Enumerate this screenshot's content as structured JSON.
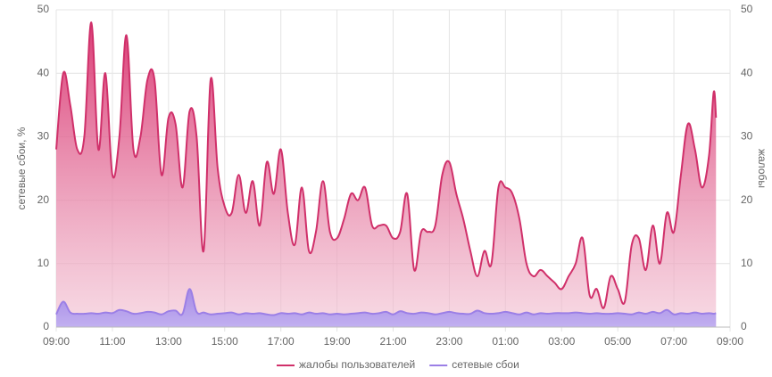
{
  "chart_data": {
    "type": "area",
    "y_label": "сетевые сбои, %",
    "y2_label": "жалобы",
    "x": [
      "09:00",
      "09:15",
      "09:30",
      "09:45",
      "10:00",
      "10:15",
      "10:30",
      "10:45",
      "11:00",
      "11:15",
      "11:30",
      "11:45",
      "12:00",
      "12:15",
      "12:30",
      "12:45",
      "13:00",
      "13:15",
      "13:30",
      "13:45",
      "14:00",
      "14:15",
      "14:30",
      "14:45",
      "15:00",
      "15:15",
      "15:30",
      "15:45",
      "16:00",
      "16:15",
      "16:30",
      "16:45",
      "17:00",
      "17:15",
      "17:30",
      "17:45",
      "18:00",
      "18:15",
      "18:30",
      "18:45",
      "19:00",
      "19:15",
      "19:30",
      "19:45",
      "20:00",
      "20:15",
      "20:30",
      "20:45",
      "21:00",
      "21:15",
      "21:30",
      "21:45",
      "22:00",
      "22:15",
      "22:30",
      "22:45",
      "23:00",
      "23:15",
      "23:30",
      "23:45",
      "00:00",
      "00:15",
      "00:30",
      "00:45",
      "01:00",
      "01:15",
      "01:30",
      "01:45",
      "02:00",
      "02:15",
      "02:30",
      "02:45",
      "03:00",
      "03:15",
      "03:30",
      "03:45",
      "04:00",
      "04:15",
      "04:30",
      "04:45",
      "05:00",
      "05:15",
      "05:30",
      "05:45",
      "06:00",
      "06:15",
      "06:30",
      "06:45",
      "07:00",
      "07:15",
      "07:30",
      "07:45",
      "08:00",
      "08:15",
      "08:25",
      "08:30"
    ],
    "series": [
      {
        "name": "жалобы пользователей",
        "color": "#d0306a",
        "axis": "y2",
        "values": [
          28,
          40,
          35,
          28,
          30,
          48,
          28,
          40,
          24,
          30,
          46,
          28,
          30,
          39,
          39,
          24,
          33,
          32,
          22,
          34,
          30,
          12,
          39,
          25,
          19,
          18,
          24,
          18,
          23,
          16,
          26,
          21,
          28,
          18,
          13,
          22,
          12,
          15,
          23,
          15,
          14,
          17,
          21,
          20,
          22,
          16,
          16,
          16,
          14,
          15,
          21,
          9,
          15,
          15,
          16,
          24,
          26,
          21,
          17,
          12,
          8,
          12,
          10,
          22,
          22,
          21,
          17,
          10,
          8,
          9,
          8,
          7,
          6,
          8,
          10,
          14,
          5,
          6,
          3,
          8,
          6,
          4,
          13,
          14,
          9,
          16,
          10,
          18,
          15,
          24,
          32,
          28,
          22,
          27,
          37,
          33
        ]
      },
      {
        "name": "сетевые сбои",
        "color": "#9b7fe6",
        "values": [
          2,
          4,
          2.3,
          2.1,
          2.1,
          2.2,
          2.1,
          2.3,
          2.2,
          2.7,
          2.5,
          2.1,
          2.2,
          2.4,
          2.3,
          2,
          2.5,
          2.6,
          2.1,
          6,
          2.4,
          2.3,
          2,
          2.1,
          2.2,
          2.3,
          2,
          2.2,
          2.1,
          2.2,
          2,
          1.9,
          2.2,
          2.1,
          2.2,
          2,
          2.3,
          2.1,
          2.2,
          2,
          2.1,
          2,
          2.1,
          2.2,
          2.3,
          2.1,
          2.2,
          2.4,
          2,
          2.5,
          2.2,
          2.1,
          2.3,
          2.2,
          2,
          2.2,
          2.4,
          2.2,
          2.1,
          2.1,
          2.6,
          2.2,
          2.1,
          2.2,
          2.4,
          2.2,
          2,
          2.3,
          2,
          2.2,
          2.1,
          2.2,
          2.2,
          2.2,
          2.3,
          2.2,
          2.1,
          2.2,
          2.1,
          2.1,
          2.2,
          2.1,
          2,
          2.3,
          2.1,
          2.4,
          2.2,
          2.7,
          2,
          2.2,
          2.1,
          2.3,
          2.1,
          2.2,
          2.1,
          2.2
        ]
      }
    ],
    "xticks": [
      "09:00",
      "11:00",
      "13:00",
      "15:00",
      "17:00",
      "19:00",
      "21:00",
      "23:00",
      "01:00",
      "03:00",
      "05:00",
      "07:00",
      "09:00"
    ],
    "ylim": [
      0,
      50
    ],
    "yticks": [
      0,
      10,
      20,
      30,
      40,
      50
    ],
    "y2lim": [
      0,
      50
    ],
    "y2ticks": [
      0,
      10,
      20,
      30,
      40,
      50
    ],
    "grid": true,
    "legend": "bottom"
  }
}
